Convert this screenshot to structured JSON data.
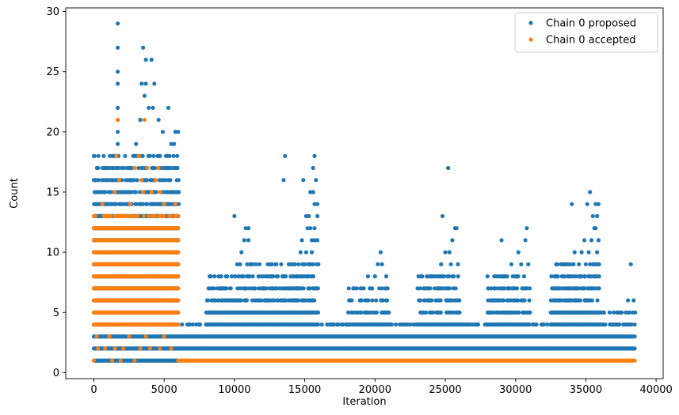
{
  "chart_data": {
    "type": "scatter",
    "xlabel": "Iteration",
    "ylabel": "Count",
    "xlim": [
      -2000,
      40500
    ],
    "ylim": [
      -0.5,
      30.3
    ],
    "xticks": [
      0,
      5000,
      10000,
      15000,
      20000,
      25000,
      30000,
      35000,
      40000
    ],
    "yticks": [
      0,
      5,
      10,
      15,
      20,
      25,
      30
    ],
    "legend_position": "top-right",
    "grid": false,
    "series": [
      {
        "name": "Chain 0 proposed",
        "color": "#1f77b4",
        "segments": [
          {
            "x_start": 0,
            "x_end": 6000,
            "y_min": 1,
            "y_dense_max": 13,
            "y_sparse_max": 18
          },
          {
            "x_start": 6000,
            "x_end": 8000,
            "y_min": 2,
            "y_dense_max": 3,
            "y_sparse_max": 4
          },
          {
            "x_start": 8000,
            "x_end": 11000,
            "y_min": 2,
            "y_dense_max": 5,
            "y_sparse_max": 8
          },
          {
            "x_start": 11000,
            "x_end": 16000,
            "y_min": 2,
            "y_dense_max": 5,
            "y_sparse_max": 9
          },
          {
            "x_start": 16000,
            "x_end": 18000,
            "y_min": 2,
            "y_dense_max": 3,
            "y_sparse_max": 4
          },
          {
            "x_start": 18000,
            "x_end": 21000,
            "y_min": 2,
            "y_dense_max": 4,
            "y_sparse_max": 7
          },
          {
            "x_start": 21000,
            "x_end": 23000,
            "y_min": 2,
            "y_dense_max": 3,
            "y_sparse_max": 4
          },
          {
            "x_start": 23000,
            "x_end": 26000,
            "y_min": 2,
            "y_dense_max": 4,
            "y_sparse_max": 8
          },
          {
            "x_start": 26000,
            "x_end": 28000,
            "y_min": 2,
            "y_dense_max": 3,
            "y_sparse_max": 4
          },
          {
            "x_start": 28000,
            "x_end": 31000,
            "y_min": 2,
            "y_dense_max": 4,
            "y_sparse_max": 8
          },
          {
            "x_start": 31000,
            "x_end": 32500,
            "y_min": 2,
            "y_dense_max": 3,
            "y_sparse_max": 4
          },
          {
            "x_start": 32500,
            "x_end": 36000,
            "y_min": 2,
            "y_dense_max": 5,
            "y_sparse_max": 9
          },
          {
            "x_start": 36000,
            "x_end": 38500,
            "y_min": 2,
            "y_dense_max": 3,
            "y_sparse_max": 5
          }
        ],
        "outliers": [
          [
            1700,
            29
          ],
          [
            1700,
            27
          ],
          [
            1700,
            25
          ],
          [
            1700,
            24
          ],
          [
            1700,
            22
          ],
          [
            1700,
            21
          ],
          [
            1700,
            20
          ],
          [
            1700,
            19
          ],
          [
            3500,
            27
          ],
          [
            3700,
            26
          ],
          [
            4100,
            26
          ],
          [
            3400,
            24
          ],
          [
            3700,
            24
          ],
          [
            4300,
            24
          ],
          [
            3600,
            23
          ],
          [
            3900,
            22
          ],
          [
            4200,
            22
          ],
          [
            5300,
            22
          ],
          [
            3300,
            21
          ],
          [
            4600,
            21
          ],
          [
            4900,
            20
          ],
          [
            5800,
            20
          ],
          [
            6000,
            20
          ],
          [
            5500,
            19
          ],
          [
            3000,
            19
          ],
          [
            2800,
            18
          ],
          [
            0,
            18
          ],
          [
            5200,
            18
          ],
          [
            5700,
            19
          ],
          [
            300,
            17
          ],
          [
            1100,
            17
          ],
          [
            2400,
            17
          ],
          [
            4200,
            17
          ],
          [
            5600,
            17
          ],
          [
            0,
            16
          ],
          [
            1800,
            16
          ],
          [
            3400,
            16
          ],
          [
            4400,
            16
          ],
          [
            5900,
            16
          ],
          [
            800,
            15
          ],
          [
            2900,
            15
          ],
          [
            3900,
            15
          ],
          [
            4900,
            15
          ],
          [
            6000,
            15
          ],
          [
            200,
            14
          ],
          [
            1500,
            14
          ],
          [
            2600,
            14
          ],
          [
            5100,
            14
          ],
          [
            10000,
            13
          ],
          [
            10800,
            12
          ],
          [
            11000,
            12
          ],
          [
            10700,
            11
          ],
          [
            11000,
            11
          ],
          [
            10500,
            10
          ],
          [
            10400,
            9
          ],
          [
            9800,
            8
          ],
          [
            10300,
            8
          ],
          [
            11000,
            8
          ],
          [
            10200,
            9
          ],
          [
            10900,
            9
          ],
          [
            13600,
            18
          ],
          [
            15700,
            18
          ],
          [
            15600,
            17
          ],
          [
            15800,
            16
          ],
          [
            13500,
            16
          ],
          [
            14900,
            16
          ],
          [
            15400,
            15
          ],
          [
            15600,
            15
          ],
          [
            15700,
            14
          ],
          [
            15900,
            14
          ],
          [
            15100,
            13
          ],
          [
            15300,
            13
          ],
          [
            15900,
            13
          ],
          [
            15200,
            12
          ],
          [
            15400,
            12
          ],
          [
            15700,
            12
          ],
          [
            15500,
            11
          ],
          [
            15700,
            11
          ],
          [
            15900,
            11
          ],
          [
            14800,
            11
          ],
          [
            15100,
            10
          ],
          [
            14700,
            10
          ],
          [
            12500,
            9
          ],
          [
            14300,
            9
          ],
          [
            14900,
            9
          ],
          [
            15500,
            10
          ],
          [
            15600,
            9
          ],
          [
            13000,
            8
          ],
          [
            13500,
            8
          ],
          [
            14000,
            8
          ],
          [
            14600,
            8
          ],
          [
            15200,
            8
          ],
          [
            12000,
            7
          ],
          [
            13200,
            7
          ],
          [
            14500,
            7
          ],
          [
            15800,
            7
          ],
          [
            20400,
            10
          ],
          [
            20200,
            9
          ],
          [
            20500,
            9
          ],
          [
            19500,
            8
          ],
          [
            20000,
            8
          ],
          [
            20800,
            8
          ],
          [
            18700,
            7
          ],
          [
            19200,
            7
          ],
          [
            19800,
            7
          ],
          [
            20300,
            7
          ],
          [
            20900,
            7
          ],
          [
            25200,
            17
          ],
          [
            24800,
            13
          ],
          [
            25700,
            12
          ],
          [
            25800,
            12
          ],
          [
            25500,
            11
          ],
          [
            25000,
            10
          ],
          [
            25300,
            10
          ],
          [
            24700,
            9
          ],
          [
            25400,
            9
          ],
          [
            25900,
            9
          ],
          [
            24000,
            8
          ],
          [
            24900,
            8
          ],
          [
            25600,
            8
          ],
          [
            23700,
            7
          ],
          [
            24500,
            7
          ],
          [
            25100,
            7
          ],
          [
            30800,
            12
          ],
          [
            29000,
            11
          ],
          [
            30700,
            11
          ],
          [
            30200,
            10
          ],
          [
            29700,
            9
          ],
          [
            30400,
            9
          ],
          [
            30900,
            9
          ],
          [
            29400,
            8
          ],
          [
            30100,
            8
          ],
          [
            30600,
            8
          ],
          [
            28500,
            7
          ],
          [
            29200,
            7
          ],
          [
            29900,
            7
          ],
          [
            30500,
            7
          ],
          [
            35300,
            15
          ],
          [
            35100,
            14
          ],
          [
            34000,
            14
          ],
          [
            35700,
            14
          ],
          [
            35900,
            14
          ],
          [
            35500,
            13
          ],
          [
            35800,
            13
          ],
          [
            35600,
            12
          ],
          [
            35700,
            12
          ],
          [
            34900,
            11
          ],
          [
            35400,
            11
          ],
          [
            35900,
            11
          ],
          [
            34200,
            10
          ],
          [
            34700,
            10
          ],
          [
            35200,
            10
          ],
          [
            35800,
            10
          ],
          [
            33800,
            9
          ],
          [
            34500,
            9
          ],
          [
            35000,
            9
          ],
          [
            35500,
            9
          ],
          [
            33000,
            8
          ],
          [
            33700,
            8
          ],
          [
            34300,
            8
          ],
          [
            34900,
            8
          ],
          [
            35600,
            8
          ],
          [
            32600,
            7
          ],
          [
            33400,
            7
          ],
          [
            34100,
            7
          ],
          [
            34800,
            7
          ],
          [
            35300,
            7
          ],
          [
            38200,
            9
          ],
          [
            38000,
            6
          ],
          [
            38400,
            6
          ],
          [
            37400,
            5
          ],
          [
            38100,
            5
          ],
          [
            38500,
            5
          ]
        ]
      },
      {
        "name": "Chain 0 accepted",
        "color": "#ff7f0e",
        "segments": [
          {
            "x_start": 0,
            "x_end": 6000,
            "y_min": 4,
            "y_dense_max": 12,
            "y_sparse_max": 13
          },
          {
            "x_start": 6000,
            "x_end": 38500,
            "y_min": 1,
            "y_dense_max": 1,
            "y_sparse_max": 1
          }
        ],
        "outliers": [
          [
            1700,
            21
          ],
          [
            3600,
            21
          ],
          [
            1600,
            18
          ],
          [
            3200,
            18
          ],
          [
            2900,
            17
          ],
          [
            3800,
            17
          ],
          [
            4600,
            17
          ],
          [
            1800,
            16
          ],
          [
            3400,
            16
          ],
          [
            4400,
            16
          ],
          [
            1500,
            15
          ],
          [
            3500,
            15
          ],
          [
            4100,
            15
          ],
          [
            4700,
            15
          ],
          [
            0,
            13
          ],
          [
            600,
            14
          ],
          [
            2600,
            14
          ],
          [
            5000,
            14
          ],
          [
            5800,
            14
          ],
          [
            0,
            1
          ],
          [
            1300,
            1
          ],
          [
            1900,
            1
          ],
          [
            2900,
            1
          ],
          [
            300,
            2
          ],
          [
            800,
            2
          ],
          [
            1500,
            2
          ],
          [
            2100,
            2
          ],
          [
            3300,
            2
          ],
          [
            4000,
            2
          ],
          [
            4700,
            2
          ],
          [
            5500,
            2
          ],
          [
            200,
            3
          ],
          [
            1100,
            3
          ],
          [
            2500,
            3
          ],
          [
            3700,
            3
          ],
          [
            5000,
            3
          ]
        ]
      }
    ]
  }
}
